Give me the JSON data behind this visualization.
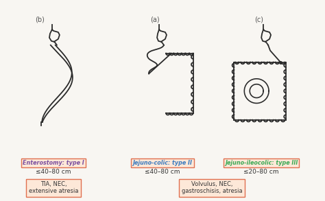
{
  "background_color": "#f8f6f2",
  "panel_labels": [
    "(b)",
    "(a)",
    "(c)"
  ],
  "type_labels": [
    "Enterostomy: type I",
    "Jejuno-colic: type II",
    "Jejuno-ileocolic: type III"
  ],
  "type_colors": [
    "#7b4fa0",
    "#3a7bbf",
    "#3aaa55"
  ],
  "measure_labels": [
    "≤40–80 cm",
    "≤40–80 cm",
    "≤20–80 cm"
  ],
  "box_bg": "#fde8d8",
  "box_border": "#e07050",
  "cause_left": "TIA, NEC,\nextensive atresia",
  "cause_right": "Volvulus, NEC,\ngastroschisis, atresia",
  "line_color": "#2a2a2a",
  "text_color": "#333333"
}
